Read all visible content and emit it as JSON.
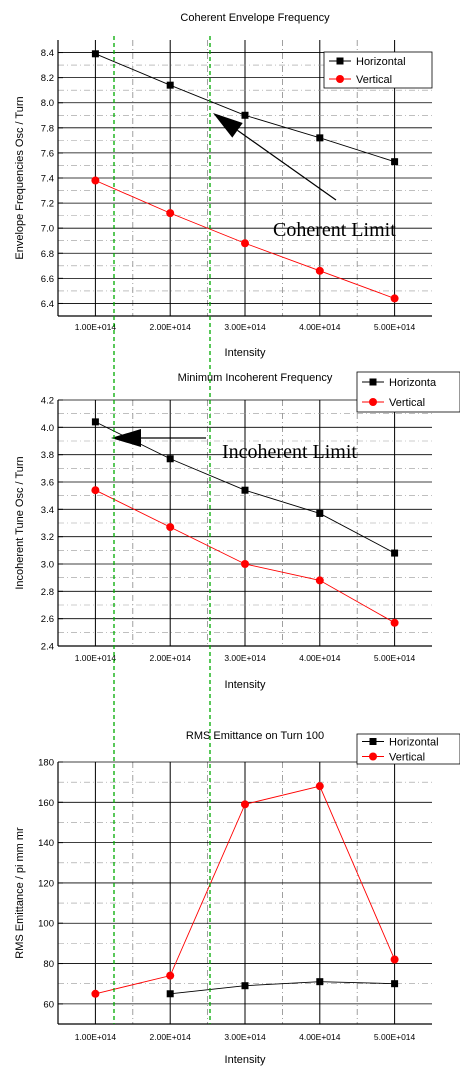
{
  "colors": {
    "horizontal": "#000000",
    "vertical": "#ff0000",
    "green_guide": "#00aa00",
    "grid": "#000000"
  },
  "chart_data": [
    {
      "type": "line",
      "title": "Coherent Envelope Frequency",
      "xlabel": "Intensity",
      "ylabel": "Envelope Frequencies Osc / Turn",
      "x": [
        100000000000000.0,
        200000000000000.0,
        300000000000000.0,
        400000000000000.0,
        500000000000000.0
      ],
      "xtick_labels": [
        "1.00E+014",
        "2.00E+014",
        "3.00E+014",
        "4.00E+014",
        "5.00E+014"
      ],
      "ylim": [
        6.3,
        8.5
      ],
      "yticks": [
        6.4,
        6.6,
        6.8,
        7.0,
        7.2,
        7.4,
        7.6,
        7.8,
        8.0,
        8.2,
        8.4
      ],
      "ytick_labels": [
        "6.4",
        "6.6",
        "6.8",
        "7.0",
        "7.2",
        "7.4",
        "7.6",
        "7.8",
        "8.0",
        "8.2",
        "8.4"
      ],
      "series": [
        {
          "name": "Horizontal",
          "values": [
            8.39,
            8.14,
            7.9,
            7.72,
            7.53
          ]
        },
        {
          "name": "Vertical",
          "values": [
            7.38,
            7.12,
            6.88,
            6.66,
            6.44
          ]
        }
      ],
      "legend": "top-right",
      "annotation": "Coherent Limit"
    },
    {
      "type": "line",
      "title": "Minimum Incoherent Frequency",
      "xlabel": "Intensity",
      "ylabel": "Incoherent Tune Osc / Turn",
      "x": [
        100000000000000.0,
        200000000000000.0,
        300000000000000.0,
        400000000000000.0,
        500000000000000.0
      ],
      "xtick_labels": [
        "1.00E+014",
        "2.00E+014",
        "3.00E+014",
        "4.00E+014",
        "5.00E+014"
      ],
      "ylim": [
        2.4,
        4.2
      ],
      "yticks": [
        2.4,
        2.6,
        2.8,
        3.0,
        3.2,
        3.4,
        3.6,
        3.8,
        4.0,
        4.2
      ],
      "ytick_labels": [
        "2.4",
        "2.6",
        "2.8",
        "3.0",
        "3.2",
        "3.4",
        "3.6",
        "3.8",
        "4.0",
        "4.2"
      ],
      "series": [
        {
          "name": "Horizontal",
          "values": [
            4.04,
            3.77,
            3.54,
            3.37,
            3.08
          ]
        },
        {
          "name": "Vertical",
          "values": [
            3.54,
            3.27,
            3.0,
            2.88,
            2.57
          ]
        }
      ],
      "legend_labels": [
        "Horizonta",
        "Vertical"
      ],
      "legend": "top-right",
      "annotation": "Incoherent Limit"
    },
    {
      "type": "line",
      "title": "RMS Emittance on Turn 100",
      "xlabel": "Intensity",
      "ylabel": "RMS Emittance / pi mm mr",
      "x": [
        100000000000000.0,
        200000000000000.0,
        300000000000000.0,
        400000000000000.0,
        500000000000000.0
      ],
      "xtick_labels": [
        "1.00E+014",
        "2.00E+014",
        "3.00E+014",
        "4.00E+014",
        "5.00E+014"
      ],
      "ylim": [
        50,
        180
      ],
      "yticks": [
        60,
        80,
        100,
        120,
        140,
        160,
        180
      ],
      "ytick_labels": [
        "60",
        "80",
        "100",
        "120",
        "140",
        "160",
        "180"
      ],
      "series": [
        {
          "name": "Horizontal",
          "x": [
            200000000000000.0,
            300000000000000.0,
            400000000000000.0,
            500000000000000.0
          ],
          "values": [
            65,
            69,
            71,
            70
          ]
        },
        {
          "name": "Vertical",
          "x": [
            100000000000000.0,
            200000000000000.0,
            300000000000000.0,
            400000000000000.0,
            500000000000000.0
          ],
          "values": [
            65,
            74,
            159,
            168,
            82
          ]
        }
      ],
      "legend": "top-right"
    }
  ]
}
